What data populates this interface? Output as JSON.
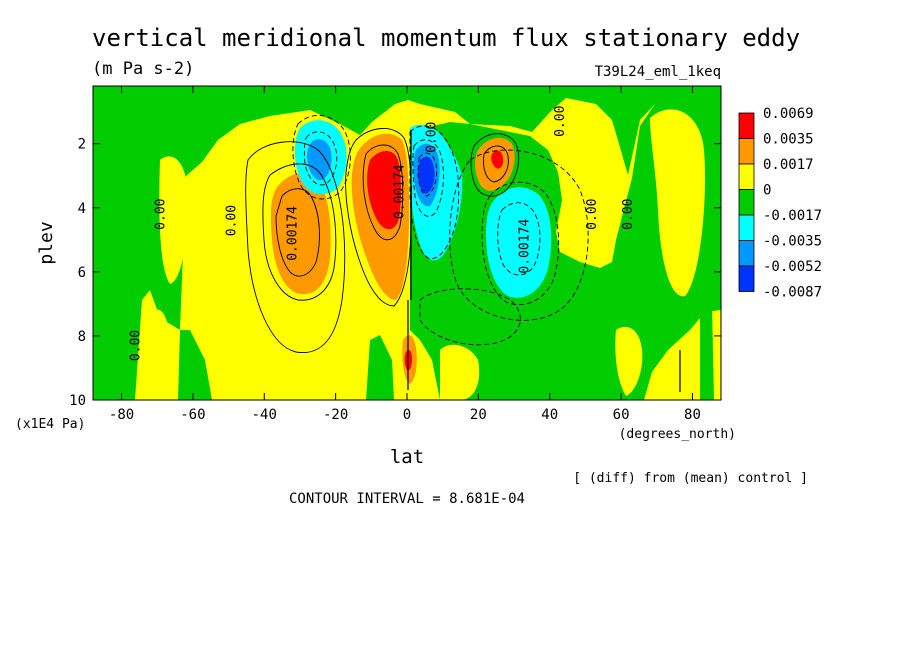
{
  "chart_data": {
    "type": "contour",
    "title": "vertical meridional momentum flux stationary eddy",
    "units": "(m Pa s-2)",
    "run_label": "T39L24_eml_1keq",
    "xlabel": "lat",
    "x_units": "(degrees_north)",
    "ylabel": "plev",
    "y_units": "(x1E4 Pa)",
    "xlim": [
      -88,
      88
    ],
    "ylim": [
      10,
      0.2
    ],
    "x_ticks": [
      -80,
      -60,
      -40,
      -20,
      0,
      20,
      40,
      60,
      80
    ],
    "x_tick_labels": [
      "-80",
      "-60",
      "-40",
      "-20",
      "0",
      "20",
      "40",
      "60",
      "80"
    ],
    "y_ticks": [
      2,
      4,
      6,
      8,
      10
    ],
    "y_tick_labels": [
      "2",
      "4",
      "6",
      "8",
      "10"
    ],
    "colorbar": {
      "levels": [
        "0.0069",
        "0.0035",
        "0.0017",
        "0",
        "-0.0017",
        "-0.0035",
        "-0.0052",
        "-0.0087"
      ],
      "colors": [
        "#ff0000",
        "#ff9900",
        "#ffff00",
        "#00cc00",
        "#00ffff",
        "#0099ff",
        "#0033ff"
      ]
    },
    "contour_labels": [
      {
        "text": "0.00",
        "lat": 44,
        "plev": 1.3
      },
      {
        "text": "0.00",
        "lat": 8,
        "plev": 1.8
      },
      {
        "text": "0.00",
        "lat": -68,
        "plev": 4.2
      },
      {
        "text": "0.00",
        "lat": -48,
        "plev": 4.4
      },
      {
        "text": "0.00174",
        "lat": -31,
        "plev": 4.8
      },
      {
        "text": "0.00174",
        "lat": -1,
        "plev": 3.5
      },
      {
        "text": "0.00174",
        "lat": 34,
        "plev": 5.2
      },
      {
        "text": "0.00",
        "lat": 53,
        "plev": 4.2
      },
      {
        "text": "0.00",
        "lat": 63,
        "plev": 4.2
      },
      {
        "text": "0.00",
        "lat": -75,
        "plev": 8.3
      }
    ],
    "footer_note": "[ (diff) from (mean) control ]",
    "contour_interval_text": "CONTOUR INTERVAL = 8.681E-04"
  }
}
